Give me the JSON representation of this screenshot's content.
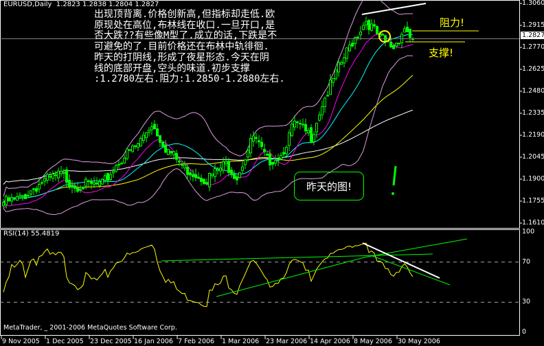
{
  "header": {
    "symbol": "EURUSD,Daily",
    "open": "1.2823",
    "high": "1.2838",
    "low": "1.2804",
    "close": "1.2827"
  },
  "note": {
    "lines": [
      "出现顶背离.价格创新高,但指标却走低.欧",
      "原现处在高位,布林线在收口.一旦开口,是",
      "否大跌??有些像M型了.成立的话,下跌是不",
      "可避免的了.目前价格还在布林中轨徘徊.",
      "昨天的打阴线,形成了夜星形态.今天在阴",
      "线的底部开盘,空头的味道.初步支撑",
      ":1.2780左右.阻力:1.2850-1.2880左右."
    ]
  },
  "annotations": {
    "resistance": "阻力!",
    "support": "支撑!",
    "yesterday": "昨天的图!"
  },
  "rsi_label": "RSI(14) 55.4819",
  "copyright": "MetaTrader, _ 2001-2006 MetaQuotes Software Corp.",
  "current_price": "1.2827",
  "colors": {
    "bull": "#00ff00",
    "bollinger": "#dda0dd",
    "ma_fast": "#ff00ff",
    "ma_mid": "#00ffff",
    "ma_slow": "#ffff00",
    "ma_long": "#ffffff",
    "annotation": "#ffff00",
    "trendline": "#00ff00"
  },
  "chart_data": [
    {
      "type": "candlestick",
      "title": "EURUSD,Daily",
      "y_ticks": [
        "1.3060",
        "1.2915",
        "1.2770",
        "1.2625",
        "1.2480",
        "1.2335",
        "1.2190",
        "1.2045",
        "1.1900",
        "1.1755",
        "1.1610"
      ],
      "ylim": [
        1.161,
        1.306
      ],
      "x_ticks": [
        "9 Nov 2005",
        "1 Dec 2005",
        "23 Dec 2005",
        "16 Jan 2006",
        "7 Feb 2006",
        "1 Mar 2006",
        "23 Mar 2006",
        "14 Apr 2006",
        "8 May 2006",
        "30 May 2006"
      ],
      "approx_closes": [
        [
          0,
          1.1746
        ],
        [
          6,
          1.177
        ],
        [
          14,
          1.188
        ],
        [
          21,
          1.193
        ],
        [
          26,
          1.186
        ],
        [
          36,
          1.186
        ],
        [
          42,
          1.202
        ],
        [
          49,
          1.213
        ],
        [
          54,
          1.227
        ],
        [
          59,
          1.211
        ],
        [
          66,
          1.197
        ],
        [
          74,
          1.19
        ],
        [
          81,
          1.2
        ],
        [
          85,
          1.192
        ],
        [
          91,
          1.218
        ],
        [
          96,
          1.202
        ],
        [
          101,
          1.206
        ],
        [
          106,
          1.227
        ],
        [
          112,
          1.218
        ],
        [
          116,
          1.24
        ],
        [
          122,
          1.263
        ],
        [
          127,
          1.281
        ],
        [
          132,
          1.295
        ],
        [
          137,
          1.283
        ],
        [
          142,
          1.277
        ],
        [
          146,
          1.29
        ],
        [
          149,
          1.2827
        ]
      ],
      "last_bar": {
        "open": 1.2823,
        "high": 1.2838,
        "low": 1.2804,
        "close": 1.2827
      }
    },
    {
      "type": "line",
      "title": "RSI(14) 55.4819",
      "y_ticks": [
        "100",
        "70",
        "30",
        "0"
      ],
      "ylim": [
        0,
        100
      ],
      "last_value": 55.4819
    }
  ]
}
